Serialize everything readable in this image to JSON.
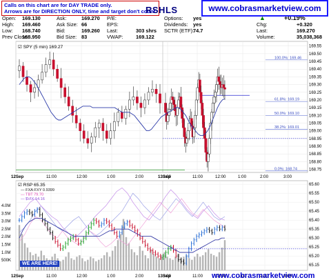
{
  "header": {
    "note_line1": "Calls on this chart are for DAY TRADE only.",
    "note_line2": "Arrows are for DIRECTION ONLY, time and target don't count.",
    "symbol": "RSHLS",
    "website": "www.cobrasmarketview.com",
    "quote_fields": [
      {
        "label": "Open:",
        "value": "169.130"
      },
      {
        "label": "High:",
        "value": "169.460"
      },
      {
        "label": "Low:",
        "value": "168.740"
      },
      {
        "label": "Prev Close:",
        "value": "168.950"
      },
      {
        "label": "Ask:",
        "value": "169.270"
      },
      {
        "label": "Ask Size:",
        "value": "66"
      },
      {
        "label": "Bid:",
        "value": "169.260"
      },
      {
        "label": "Bid Size:",
        "value": "83"
      },
      {
        "label": "P/E:",
        "value": ""
      },
      {
        "label": "EPS:",
        "value": ""
      },
      {
        "label": "Last:",
        "value": "303 shrs"
      },
      {
        "label": "VWAP:",
        "value": "169.122"
      },
      {
        "label": "Options:",
        "value": "yes"
      },
      {
        "label": "Dividends:",
        "value": "yes"
      },
      {
        "label": "SCTR (ETF):",
        "value": "74.7"
      },
      {
        "label": "Chg:",
        "value": "+0.320"
      },
      {
        "label": "Last:",
        "value": "169.270"
      },
      {
        "label": "Volume:",
        "value": "35,038,368"
      }
    ],
    "pct_change": "+0.19%",
    "up_color": "#008000"
  },
  "chart_data": [
    {
      "type": "candlestick",
      "title": "SPY (5 min) 169.27",
      "x_ticks": [
        "12Sep",
        "11:00",
        "12:00",
        "1:00",
        "2:00",
        "3:00",
        "13Sep",
        "11:00",
        "12:00",
        "1:00",
        "2:00",
        "3:00"
      ],
      "y_ticks": [
        "169.55",
        "169.50",
        "169.45",
        "169.40",
        "169.35",
        "169.30",
        "169.25",
        "169.20",
        "169.15",
        "169.10",
        "169.05",
        "169.00",
        "168.95",
        "168.90",
        "168.85",
        "168.80",
        "168.75"
      ],
      "ylim": [
        168.73,
        169.58
      ],
      "fib_levels": [
        {
          "label": "100.0%: 169.46",
          "value": 169.46
        },
        {
          "label": "61.8%: 169.19",
          "value": 169.19
        },
        {
          "label": "50.0%: 169.10",
          "value": 169.1
        },
        {
          "label": "38.2%: 169.01",
          "value": 169.01
        },
        {
          "label": "0.0%: 168.74",
          "value": 168.74
        }
      ],
      "prev_close": 168.95,
      "horizontal_line": 169.23,
      "close_series": [
        169.42,
        169.35,
        169.3,
        169.25,
        169.28,
        169.33,
        169.38,
        169.43,
        169.46,
        169.4,
        169.34,
        169.28,
        169.22,
        169.16,
        169.1,
        169.05,
        169.0,
        168.95,
        168.92,
        168.96,
        169.02,
        169.05,
        169.0,
        168.95,
        169.0,
        169.06,
        169.12,
        169.08,
        169.14,
        169.2,
        169.22,
        169.18,
        169.15,
        169.2,
        169.25,
        169.27,
        169.24,
        169.18,
        169.12,
        169.06,
        169.1,
        169.14,
        169.18,
        169.22,
        169.2,
        169.17,
        169.13,
        169.1,
        169.15,
        169.2,
        169.22,
        169.15,
        169.08,
        169.02,
        168.96,
        168.92,
        168.95,
        169.0,
        169.05,
        169.08,
        169.03,
        168.96,
        169.02,
        169.1,
        169.2,
        169.28,
        169.33,
        169.25,
        169.18,
        169.1,
        169.02,
        168.95,
        168.86,
        168.8,
        168.85,
        168.95,
        169.05,
        169.12,
        169.18,
        169.22,
        169.25,
        169.3,
        169.35,
        169.32,
        169.3,
        169.28,
        169.3,
        169.28,
        169.27
      ],
      "ma_series": [
        169.3,
        169.32,
        169.34,
        169.35,
        169.35,
        169.34,
        169.32,
        169.3,
        169.27,
        169.24,
        169.21,
        169.18,
        169.15,
        169.12,
        169.1,
        169.08,
        169.07,
        169.07,
        169.08,
        169.09,
        169.1,
        169.11,
        169.12,
        169.13,
        169.14,
        169.15,
        169.16,
        169.16,
        169.16,
        169.16,
        169.15,
        169.15,
        169.15,
        169.15,
        169.15,
        169.15,
        169.15,
        169.15,
        169.15,
        169.15,
        169.14,
        169.13,
        169.12,
        169.12,
        169.12,
        169.12,
        169.11,
        169.1,
        169.08,
        169.06,
        169.04,
        169.02,
        169.0,
        169.0,
        169.01,
        169.03,
        169.05,
        169.07,
        169.09,
        169.1,
        169.11,
        169.12,
        169.13,
        169.14,
        169.15,
        169.15,
        169.14,
        169.12,
        169.1,
        169.07,
        169.04,
        169.02,
        169.0,
        168.98,
        168.97,
        168.97,
        168.98,
        169.0,
        169.03,
        169.07,
        169.11,
        169.15,
        169.18,
        169.2,
        169.21
      ]
    },
    {
      "type": "line",
      "title": "RSP 65.35",
      "series_labels": [
        "FXA:FXY 0.9399",
        "TBT 79.70",
        "$VIX 14.16"
      ],
      "y_ticks": [
        "65.60",
        "65.55",
        "65.50",
        "65.45",
        "65.40",
        "65.35",
        "65.30",
        "65.25",
        "65.20",
        "65.15"
      ],
      "volume_ticks": [
        "4.0M",
        "3.5M",
        "3.0M",
        "2.5M",
        "2.0M",
        "1.5M",
        "1.0M",
        "500K"
      ],
      "x_ticks": [
        "12Sep",
        "11:00",
        "12:00",
        "1:00",
        "2:00",
        "3:00",
        "13Sep",
        "11:00",
        "12:00",
        "1:00",
        "2:00",
        "3:00"
      ],
      "ylim": [
        65.12,
        65.62
      ],
      "hline": 65.24,
      "close_series": [
        65.4,
        65.42,
        65.44,
        65.45,
        65.44,
        65.43,
        65.45,
        65.46,
        65.43,
        65.4,
        65.38,
        65.35,
        65.33,
        65.3,
        65.28,
        65.26,
        65.24,
        65.25,
        65.27,
        65.29,
        65.3,
        65.31,
        65.29,
        65.27,
        65.28,
        65.3,
        65.33,
        65.36,
        65.38,
        65.4,
        65.39,
        65.37,
        65.38,
        65.4,
        65.39,
        65.37,
        65.35,
        65.33,
        65.31,
        65.33,
        65.36,
        65.38,
        65.39,
        65.37,
        65.36,
        65.34,
        65.32,
        65.3,
        65.28,
        65.26,
        65.24,
        65.23,
        65.22,
        65.21,
        65.2,
        65.19,
        65.2,
        65.22,
        65.24,
        65.25,
        65.23,
        65.2,
        65.18,
        65.17,
        65.16,
        65.2,
        65.24,
        65.27,
        65.29,
        65.31,
        65.32,
        65.33,
        65.34,
        65.35,
        65.34,
        65.33,
        65.35,
        65.36,
        65.35,
        65.36,
        65.35
      ],
      "ma_series": [
        65.3,
        65.34,
        65.37,
        65.39,
        65.4,
        65.41,
        65.41,
        65.41,
        65.4,
        65.39,
        65.38,
        65.37,
        65.36,
        65.35,
        65.34,
        65.33,
        65.32,
        65.31,
        65.31,
        65.31,
        65.31,
        65.31,
        65.31,
        65.31,
        65.31,
        65.31,
        65.32,
        65.33,
        65.34,
        65.34,
        65.35,
        65.35,
        65.35,
        65.35,
        65.35,
        65.34,
        65.33,
        65.32,
        65.31,
        65.31,
        65.31,
        65.31,
        65.3,
        65.29,
        65.28,
        65.27,
        65.26,
        65.25,
        65.24,
        65.23,
        65.22,
        65.22,
        65.22,
        65.22,
        65.22,
        65.23,
        65.24,
        65.25,
        65.26,
        65.27,
        65.28,
        65.29,
        65.29,
        65.3,
        65.3
      ],
      "volume": [
        3.0,
        2.4,
        1.8,
        1.5,
        1.2,
        1.0,
        1.1,
        0.9,
        1.3,
        1.0,
        0.8,
        0.7,
        0.9,
        1.1,
        0.8,
        0.6,
        0.7,
        0.9,
        1.2,
        0.8,
        0.7,
        0.9,
        1.0,
        0.8,
        0.6,
        0.7,
        0.9,
        0.8,
        0.6,
        0.7,
        0.8,
        1.0,
        1.2,
        0.9,
        1.3,
        1.6,
        2.0,
        2.4,
        3.4,
        2.2,
        1.8,
        1.4,
        1.2,
        1.0,
        1.6,
        1.3,
        1.0,
        0.8,
        1.4,
        1.1,
        0.9,
        0.8,
        1.0,
        1.2,
        0.9,
        0.8,
        0.7,
        0.9,
        1.1,
        0.8,
        0.9,
        1.0,
        0.8,
        0.7,
        0.9,
        1.1,
        0.9,
        1.0,
        1.2,
        1.4,
        1.1,
        1.0,
        0.9,
        1.2,
        1.5,
        2.0
      ]
    }
  ],
  "overlay": {
    "we_are_here": "WE ARE HERE!",
    "watermark": "www.cobrasmarketview.com"
  }
}
